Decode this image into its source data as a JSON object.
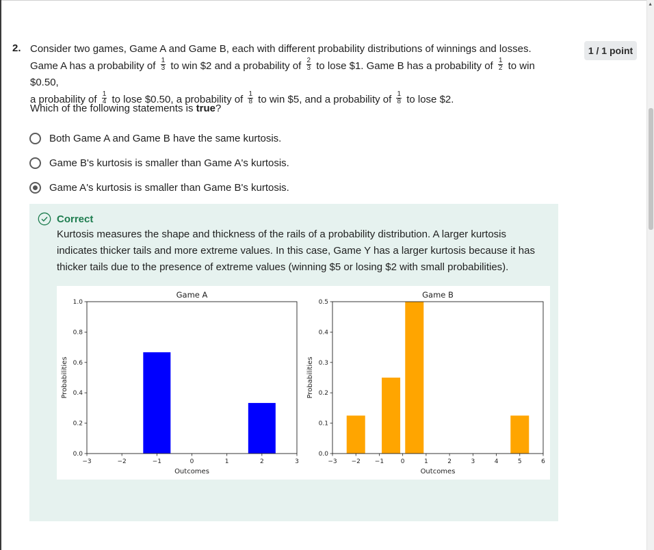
{
  "question": {
    "number": "2.",
    "points": "1 / 1 point",
    "line1": "Consider two games, Game A and Game B, each with different probability distributions of winnings and losses.",
    "l2_a": "Game A has a probability of",
    "l2_f1": [
      "1",
      "3"
    ],
    "l2_b": "to win $2 and a probability of",
    "l2_f2": [
      "2",
      "3"
    ],
    "l2_c": "to lose $1. Game B has a probability of",
    "l2_f3": [
      "1",
      "2"
    ],
    "l2_d": "to win $0.50,",
    "l3_a": "a probability of",
    "l3_f1": [
      "1",
      "4"
    ],
    "l3_b": "to lose $0.50, a probability of",
    "l3_f2": [
      "1",
      "8"
    ],
    "l3_c": "to win $5, and a probability of",
    "l3_f3": [
      "1",
      "8"
    ],
    "l3_d": "to lose $2.",
    "prompt_pre": "Which of the following statements is ",
    "prompt_bold": "true",
    "prompt_post": "?"
  },
  "options": [
    {
      "label": "Both Game A and Game B have the same kurtosis.",
      "selected": false
    },
    {
      "label": "Game B's kurtosis is smaller than Game A's kurtosis.",
      "selected": false
    },
    {
      "label": "Game A's kurtosis is smaller than Game B's kurtosis.",
      "selected": true
    }
  ],
  "feedback": {
    "status": "Correct",
    "icon": "check-circle-icon",
    "status_color": "#1e7d4f",
    "text": "Kurtosis measures the shape and thickness of the rails of a probability distribution. A larger kurtosis indicates thicker tails and more extreme values. In this case, Game Y has a larger kurtosis because it has thicker tails due to the presence of extreme values (winning $5 or losing $2 with small probabilities)."
  },
  "chart_data": [
    {
      "type": "bar",
      "title": "Game A",
      "xlabel": "Outcomes",
      "ylabel": "Probabilities",
      "color": "#0000ff",
      "x": [
        -1,
        2
      ],
      "values": [
        0.667,
        0.333
      ],
      "xlim": [
        -3,
        3
      ],
      "ylim": [
        0,
        1.0
      ],
      "xticks": [
        "−3",
        "−2",
        "−1",
        "0",
        "1",
        "2",
        "3"
      ],
      "yticks": [
        "0.0",
        "0.2",
        "0.4",
        "0.6",
        "0.8",
        "1.0"
      ]
    },
    {
      "type": "bar",
      "title": "Game B",
      "xlabel": "Outcomes",
      "ylabel": "Probabilities",
      "color": "#ffa500",
      "x": [
        -2,
        -0.5,
        0.5,
        5
      ],
      "values": [
        0.125,
        0.25,
        0.5,
        0.125
      ],
      "xlim": [
        -3,
        6
      ],
      "ylim": [
        0,
        0.5
      ],
      "xticks": [
        "−3",
        "−2",
        "−1",
        "0",
        "1",
        "2",
        "3",
        "4",
        "5",
        "6"
      ],
      "yticks": [
        "0.0",
        "0.1",
        "0.2",
        "0.3",
        "0.4",
        "0.5"
      ]
    }
  ]
}
